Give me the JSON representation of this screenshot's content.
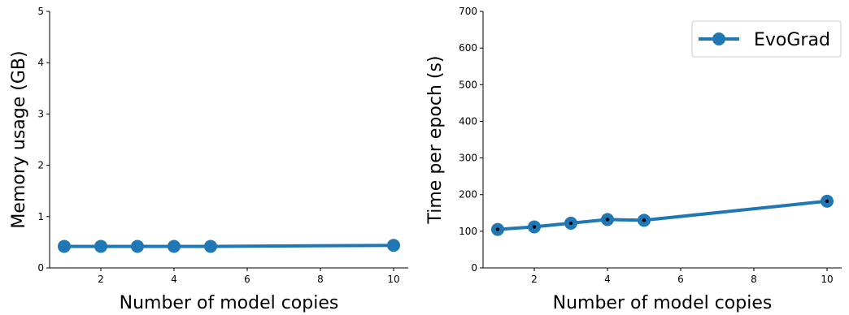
{
  "chart_data": [
    {
      "type": "line",
      "xlabel": "Number of model copies",
      "ylabel": "Memory usage (GB)",
      "xlim": [
        0.6,
        10.4
      ],
      "ylim": [
        0,
        5
      ],
      "xticks": [
        2,
        4,
        6,
        8,
        10
      ],
      "yticks": [
        0,
        1,
        2,
        3,
        4,
        5
      ],
      "grid": false,
      "series": [
        {
          "x": [
            1,
            2,
            3,
            4,
            5,
            10
          ],
          "values": [
            0.42,
            0.42,
            0.42,
            0.42,
            0.42,
            0.44
          ],
          "color": "#1f77b4",
          "error_dots": false
        }
      ]
    },
    {
      "type": "line",
      "xlabel": "Number of model copies",
      "ylabel": "Time per epoch (s)",
      "xlim": [
        0.6,
        10.4
      ],
      "ylim": [
        0,
        700
      ],
      "xticks": [
        2,
        4,
        6,
        8,
        10
      ],
      "yticks": [
        0,
        100,
        200,
        300,
        400,
        500,
        600,
        700
      ],
      "grid": false,
      "legend": {
        "position": "top-right",
        "entries": [
          "EvoGrad"
        ]
      },
      "series": [
        {
          "name": "EvoGrad",
          "x": [
            1,
            2,
            3,
            4,
            5,
            10
          ],
          "values": [
            105,
            112,
            122,
            132,
            130,
            182
          ],
          "color": "#1f77b4",
          "error_dots": true
        }
      ]
    }
  ]
}
